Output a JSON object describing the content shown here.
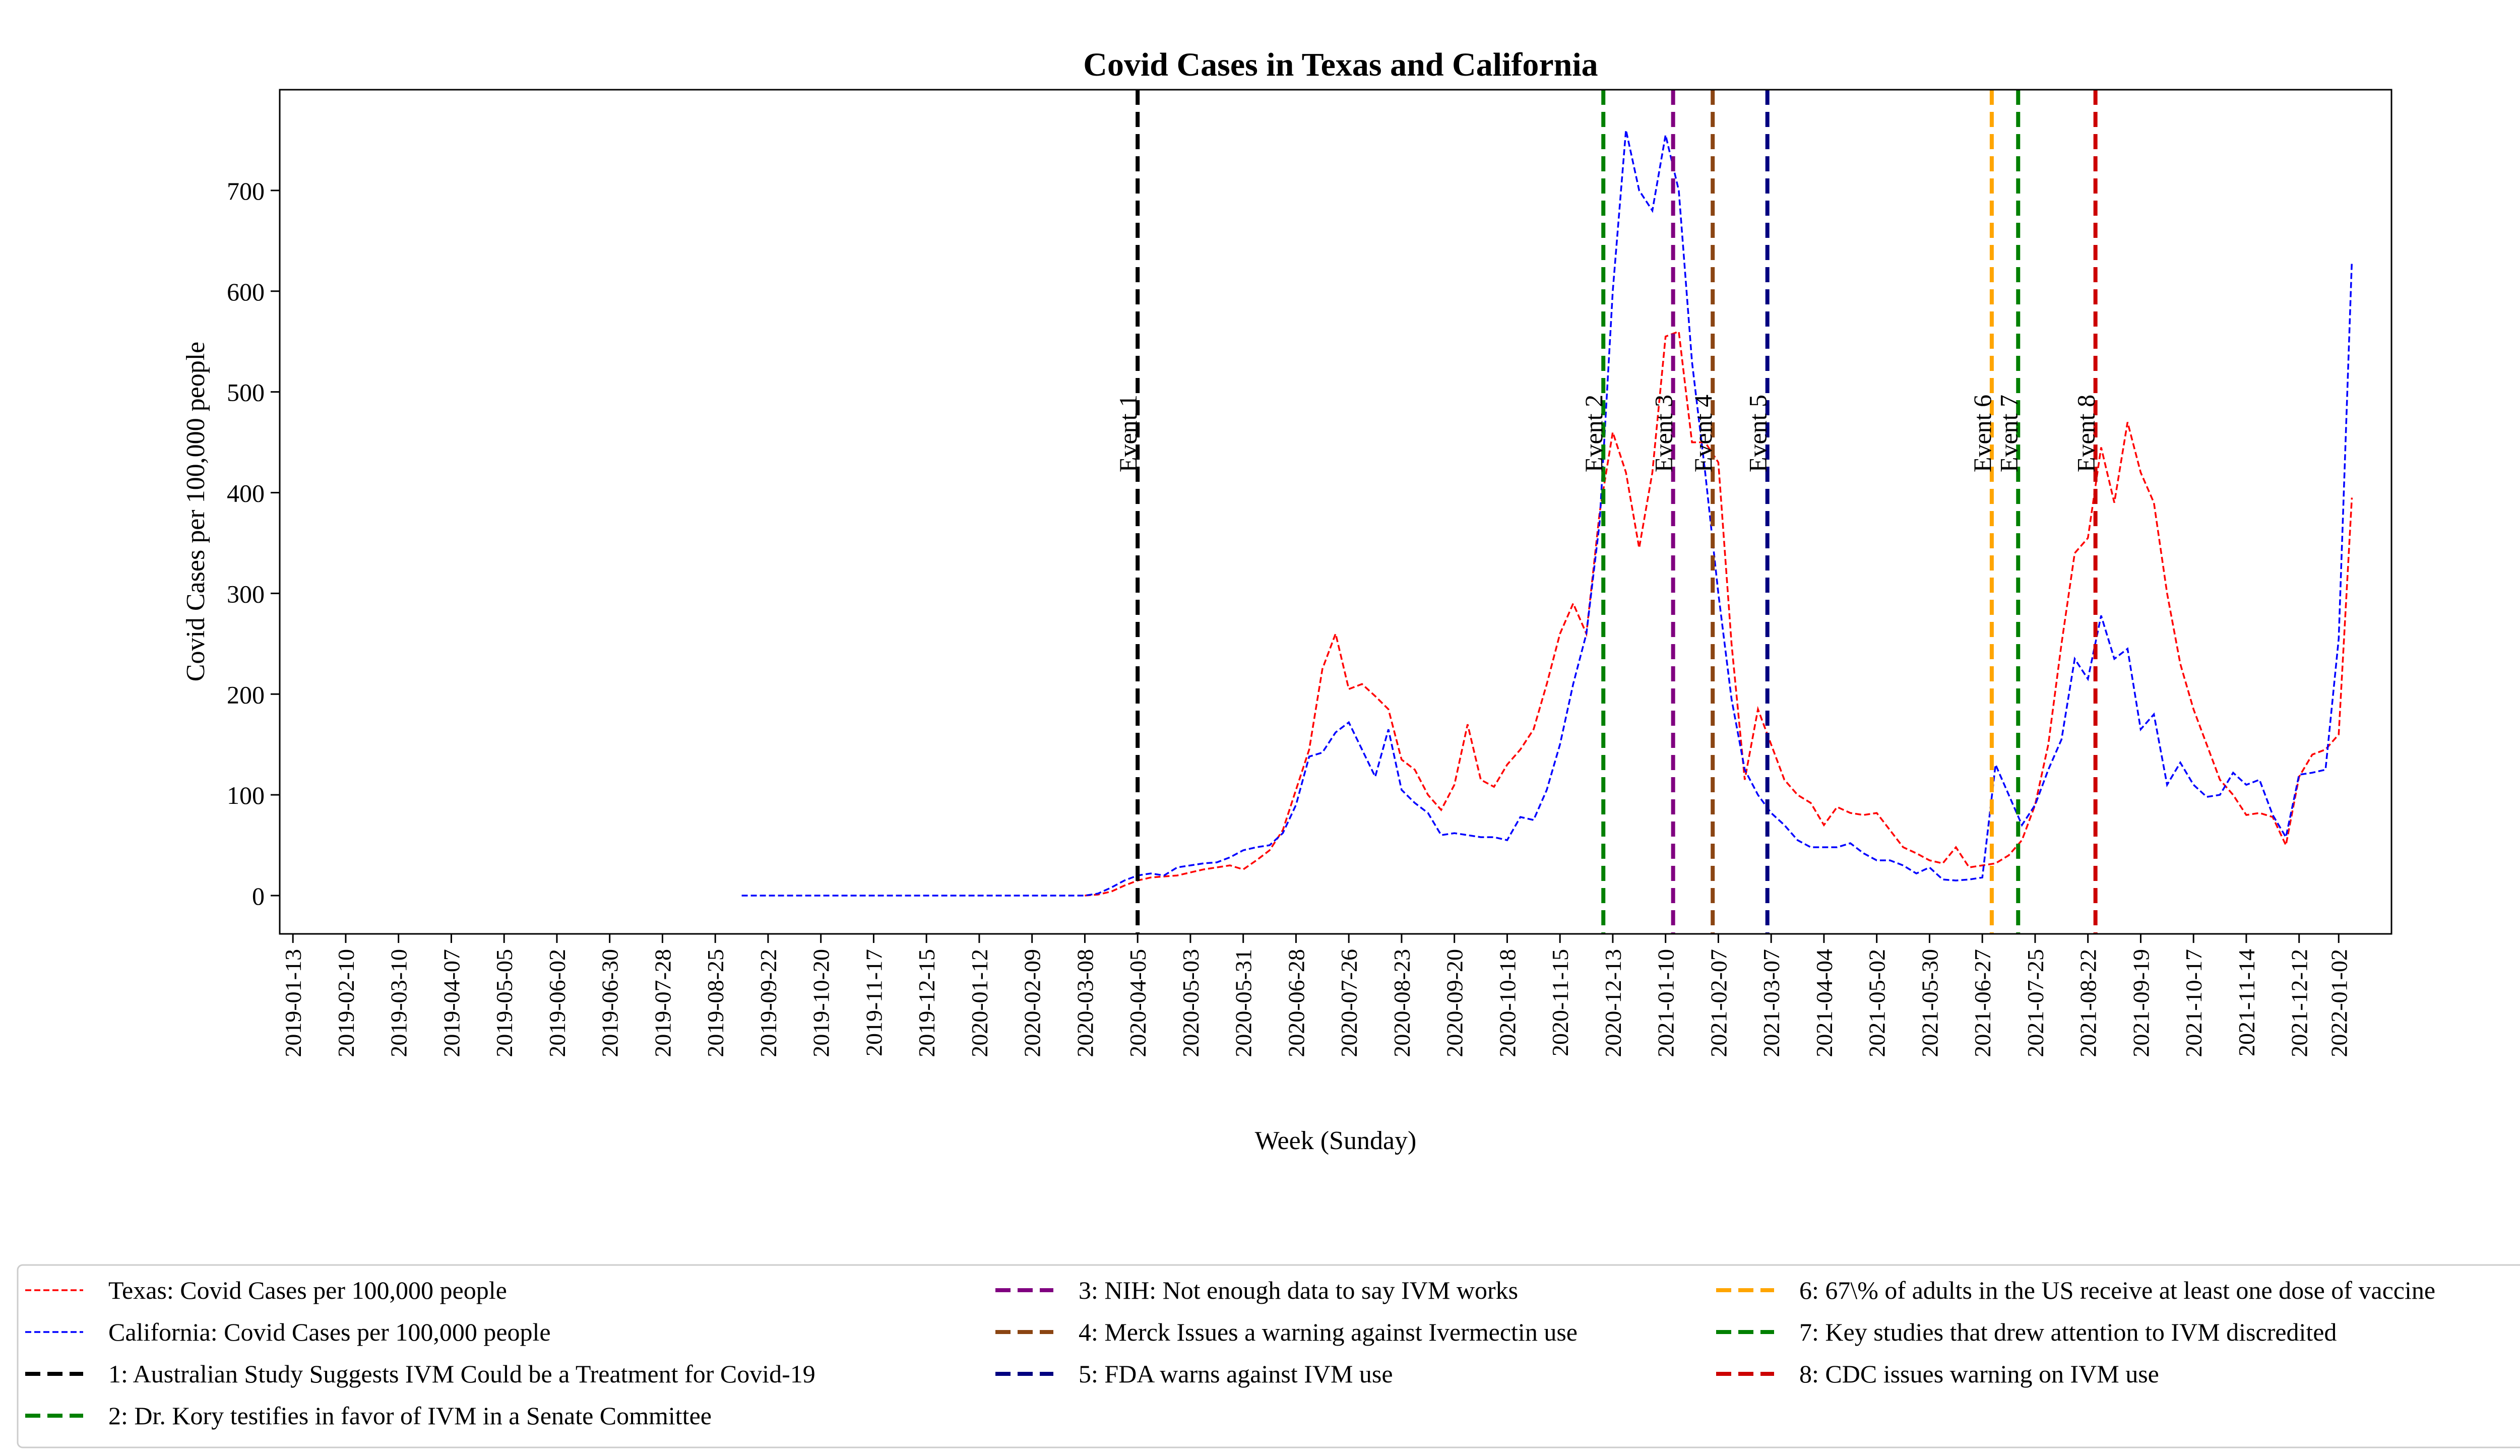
{
  "chart_data": {
    "type": "line",
    "title": "Covid Cases in Texas and California",
    "xlabel": "Week (Sunday)",
    "ylabel": "Covid Cases per 100,000 people",
    "ylim": [
      -38,
      800
    ],
    "xlim": [
      "2019-01-06",
      "2022-01-30"
    ],
    "yticks": [
      0,
      100,
      200,
      300,
      400,
      500,
      600,
      700
    ],
    "xticks": [
      "2019-01-13",
      "2019-02-10",
      "2019-03-10",
      "2019-04-07",
      "2019-05-05",
      "2019-06-02",
      "2019-06-30",
      "2019-07-28",
      "2019-08-25",
      "2019-09-22",
      "2019-10-20",
      "2019-11-17",
      "2019-12-15",
      "2020-01-12",
      "2020-02-09",
      "2020-03-08",
      "2020-04-05",
      "2020-05-03",
      "2020-05-31",
      "2020-06-28",
      "2020-07-26",
      "2020-08-23",
      "2020-09-20",
      "2020-10-18",
      "2020-11-15",
      "2020-12-13",
      "2021-01-10",
      "2021-02-07",
      "2021-03-07",
      "2021-04-04",
      "2021-05-02",
      "2021-05-30",
      "2021-06-27",
      "2021-07-25",
      "2021-08-22",
      "2021-09-19",
      "2021-10-17",
      "2021-11-14",
      "2021-12-12",
      "2022-01-02"
    ],
    "grid": false,
    "legend_position": "below",
    "series": [
      {
        "name": "Texas: Covid Cases per 100,000 people",
        "color": "#ff0000",
        "style": "dashed",
        "points": [
          [
            "2020-03-08",
            0
          ],
          [
            "2020-03-15",
            1
          ],
          [
            "2020-03-22",
            4
          ],
          [
            "2020-03-29",
            10
          ],
          [
            "2020-04-05",
            15
          ],
          [
            "2020-04-12",
            18
          ],
          [
            "2020-04-19",
            19
          ],
          [
            "2020-04-26",
            20
          ],
          [
            "2020-05-03",
            23
          ],
          [
            "2020-05-10",
            26
          ],
          [
            "2020-05-17",
            28
          ],
          [
            "2020-05-24",
            30
          ],
          [
            "2020-05-31",
            26
          ],
          [
            "2020-06-07",
            35
          ],
          [
            "2020-06-14",
            45
          ],
          [
            "2020-06-21",
            65
          ],
          [
            "2020-06-28",
            105
          ],
          [
            "2020-07-05",
            145
          ],
          [
            "2020-07-12",
            225
          ],
          [
            "2020-07-19",
            260
          ],
          [
            "2020-07-26",
            205
          ],
          [
            "2020-08-02",
            210
          ],
          [
            "2020-08-09",
            198
          ],
          [
            "2020-08-16",
            185
          ],
          [
            "2020-08-23",
            135
          ],
          [
            "2020-08-30",
            125
          ],
          [
            "2020-09-06",
            100
          ],
          [
            "2020-09-13",
            85
          ],
          [
            "2020-09-20",
            110
          ],
          [
            "2020-09-27",
            170
          ],
          [
            "2020-10-04",
            115
          ],
          [
            "2020-10-11",
            108
          ],
          [
            "2020-10-18",
            130
          ],
          [
            "2020-10-25",
            145
          ],
          [
            "2020-11-01",
            165
          ],
          [
            "2020-11-08",
            210
          ],
          [
            "2020-11-15",
            260
          ],
          [
            "2020-11-22",
            290
          ],
          [
            "2020-11-29",
            260
          ],
          [
            "2020-12-06",
            380
          ],
          [
            "2020-12-13",
            460
          ],
          [
            "2020-12-20",
            420
          ],
          [
            "2020-12-27",
            345
          ],
          [
            "2021-01-03",
            420
          ],
          [
            "2021-01-10",
            555
          ],
          [
            "2021-01-17",
            560
          ],
          [
            "2021-01-24",
            450
          ],
          [
            "2021-01-31",
            450
          ],
          [
            "2021-02-07",
            430
          ],
          [
            "2021-02-14",
            250
          ],
          [
            "2021-02-21",
            115
          ],
          [
            "2021-02-28",
            185
          ],
          [
            "2021-03-07",
            150
          ],
          [
            "2021-03-14",
            115
          ],
          [
            "2021-03-21",
            100
          ],
          [
            "2021-03-28",
            92
          ],
          [
            "2021-04-04",
            70
          ],
          [
            "2021-04-11",
            88
          ],
          [
            "2021-04-18",
            82
          ],
          [
            "2021-04-25",
            80
          ],
          [
            "2021-05-02",
            82
          ],
          [
            "2021-05-09",
            65
          ],
          [
            "2021-05-16",
            48
          ],
          [
            "2021-05-23",
            42
          ],
          [
            "2021-05-30",
            35
          ],
          [
            "2021-06-06",
            32
          ],
          [
            "2021-06-13",
            48
          ],
          [
            "2021-06-20",
            28
          ],
          [
            "2021-06-27",
            30
          ],
          [
            "2021-07-04",
            32
          ],
          [
            "2021-07-11",
            40
          ],
          [
            "2021-07-18",
            55
          ],
          [
            "2021-07-25",
            90
          ],
          [
            "2021-08-01",
            150
          ],
          [
            "2021-08-08",
            250
          ],
          [
            "2021-08-15",
            340
          ],
          [
            "2021-08-22",
            355
          ],
          [
            "2021-08-29",
            445
          ],
          [
            "2021-09-05",
            390
          ],
          [
            "2021-09-12",
            470
          ],
          [
            "2021-09-19",
            420
          ],
          [
            "2021-09-26",
            390
          ],
          [
            "2021-10-03",
            300
          ],
          [
            "2021-10-10",
            230
          ],
          [
            "2021-10-17",
            185
          ],
          [
            "2021-10-24",
            150
          ],
          [
            "2021-10-31",
            115
          ],
          [
            "2021-11-07",
            100
          ],
          [
            "2021-11-14",
            80
          ],
          [
            "2021-11-21",
            82
          ],
          [
            "2021-11-28",
            78
          ],
          [
            "2021-12-05",
            50
          ],
          [
            "2021-12-12",
            118
          ],
          [
            "2021-12-19",
            140
          ],
          [
            "2021-12-26",
            145
          ],
          [
            "2022-01-02",
            160
          ],
          [
            "2022-01-09",
            395
          ]
        ]
      },
      {
        "name": "California: Covid Cases per 100,000 people",
        "color": "#0000ff",
        "style": "dashed",
        "points": [
          [
            "2019-09-08",
            0
          ],
          [
            "2019-10-06",
            0
          ],
          [
            "2019-11-03",
            0
          ],
          [
            "2019-12-01",
            0
          ],
          [
            "2020-01-05",
            0
          ],
          [
            "2020-02-02",
            0
          ],
          [
            "2020-03-01",
            0
          ],
          [
            "2020-03-08",
            0
          ],
          [
            "2020-03-15",
            2
          ],
          [
            "2020-03-22",
            8
          ],
          [
            "2020-03-29",
            15
          ],
          [
            "2020-04-05",
            20
          ],
          [
            "2020-04-12",
            22
          ],
          [
            "2020-04-19",
            20
          ],
          [
            "2020-04-26",
            28
          ],
          [
            "2020-05-03",
            30
          ],
          [
            "2020-05-10",
            32
          ],
          [
            "2020-05-17",
            33
          ],
          [
            "2020-05-24",
            38
          ],
          [
            "2020-05-31",
            45
          ],
          [
            "2020-06-07",
            48
          ],
          [
            "2020-06-14",
            50
          ],
          [
            "2020-06-21",
            62
          ],
          [
            "2020-06-28",
            90
          ],
          [
            "2020-07-05",
            138
          ],
          [
            "2020-07-12",
            142
          ],
          [
            "2020-07-19",
            162
          ],
          [
            "2020-07-26",
            172
          ],
          [
            "2020-08-02",
            145
          ],
          [
            "2020-08-09",
            118
          ],
          [
            "2020-08-16",
            165
          ],
          [
            "2020-08-23",
            105
          ],
          [
            "2020-08-30",
            92
          ],
          [
            "2020-09-06",
            82
          ],
          [
            "2020-09-13",
            60
          ],
          [
            "2020-09-20",
            62
          ],
          [
            "2020-09-27",
            60
          ],
          [
            "2020-10-04",
            58
          ],
          [
            "2020-10-11",
            58
          ],
          [
            "2020-10-18",
            55
          ],
          [
            "2020-10-25",
            78
          ],
          [
            "2020-11-01",
            75
          ],
          [
            "2020-11-08",
            105
          ],
          [
            "2020-11-15",
            150
          ],
          [
            "2020-11-22",
            210
          ],
          [
            "2020-11-29",
            260
          ],
          [
            "2020-12-06",
            370
          ],
          [
            "2020-12-13",
            600
          ],
          [
            "2020-12-20",
            760
          ],
          [
            "2020-12-27",
            700
          ],
          [
            "2021-01-03",
            680
          ],
          [
            "2021-01-10",
            755
          ],
          [
            "2021-01-17",
            700
          ],
          [
            "2021-01-24",
            530
          ],
          [
            "2021-01-31",
            420
          ],
          [
            "2021-02-07",
            300
          ],
          [
            "2021-02-14",
            195
          ],
          [
            "2021-02-21",
            125
          ],
          [
            "2021-02-28",
            100
          ],
          [
            "2021-03-07",
            82
          ],
          [
            "2021-03-14",
            70
          ],
          [
            "2021-03-21",
            55
          ],
          [
            "2021-03-28",
            48
          ],
          [
            "2021-04-04",
            48
          ],
          [
            "2021-04-11",
            48
          ],
          [
            "2021-04-18",
            52
          ],
          [
            "2021-04-25",
            42
          ],
          [
            "2021-05-02",
            35
          ],
          [
            "2021-05-09",
            35
          ],
          [
            "2021-05-16",
            30
          ],
          [
            "2021-05-23",
            22
          ],
          [
            "2021-05-30",
            28
          ],
          [
            "2021-06-06",
            16
          ],
          [
            "2021-06-13",
            15
          ],
          [
            "2021-06-20",
            16
          ],
          [
            "2021-06-27",
            18
          ],
          [
            "2021-07-04",
            130
          ],
          [
            "2021-07-11",
            100
          ],
          [
            "2021-07-18",
            70
          ],
          [
            "2021-07-25",
            90
          ],
          [
            "2021-08-01",
            125
          ],
          [
            "2021-08-08",
            155
          ],
          [
            "2021-08-15",
            235
          ],
          [
            "2021-08-22",
            215
          ],
          [
            "2021-08-29",
            278
          ],
          [
            "2021-09-05",
            235
          ],
          [
            "2021-09-12",
            245
          ],
          [
            "2021-09-19",
            165
          ],
          [
            "2021-09-26",
            180
          ],
          [
            "2021-10-03",
            110
          ],
          [
            "2021-10-10",
            132
          ],
          [
            "2021-10-17",
            110
          ],
          [
            "2021-10-24",
            98
          ],
          [
            "2021-10-31",
            100
          ],
          [
            "2021-11-07",
            122
          ],
          [
            "2021-11-14",
            110
          ],
          [
            "2021-11-21",
            115
          ],
          [
            "2021-11-28",
            80
          ],
          [
            "2021-12-05",
            58
          ],
          [
            "2021-12-12",
            120
          ],
          [
            "2021-12-19",
            122
          ],
          [
            "2021-12-26",
            125
          ],
          [
            "2022-01-02",
            255
          ],
          [
            "2022-01-09",
            630
          ]
        ]
      }
    ],
    "events": [
      {
        "label": "Event 1",
        "date": "2020-04-05",
        "color": "#000000",
        "legend": "1: Australian Study Suggests IVM Could be a Treatment for Covid-19"
      },
      {
        "label": "Event 2",
        "date": "2020-12-08",
        "color": "#008000",
        "legend": "2: Dr. Kory testifies in favor of IVM in a Senate Committee"
      },
      {
        "label": "Event 3",
        "date": "2021-01-14",
        "color": "#800080",
        "legend": "3: NIH: Not enough data to say IVM works"
      },
      {
        "label": "Event 4",
        "date": "2021-02-04",
        "color": "#8b4513",
        "legend": "4: Merck Issues a warning against Ivermectin use"
      },
      {
        "label": "Event 5",
        "date": "2021-03-05",
        "color": "#000080",
        "legend": "5: FDA warns against IVM use"
      },
      {
        "label": "Event 6",
        "date": "2021-07-02",
        "color": "#ffa500",
        "legend": "6: 67\\% of adults in the US receive at least one dose of vaccine"
      },
      {
        "label": "Event 7",
        "date": "2021-07-16",
        "color": "#008000",
        "legend": "7: Key studies that drew attention to IVM discredited"
      },
      {
        "label": "Event 8",
        "date": "2021-08-26",
        "color": "#cc0000",
        "legend": "8: CDC issues warning on IVM use"
      }
    ]
  }
}
